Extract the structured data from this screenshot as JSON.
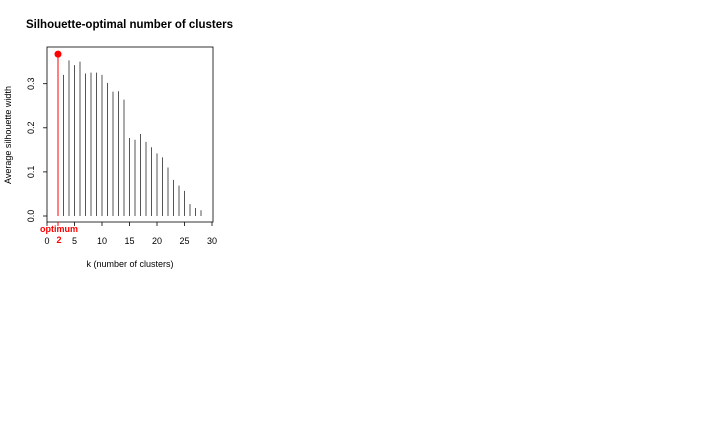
{
  "chart_data": {
    "type": "bar",
    "title": "Silhouette-optimal number of clusters",
    "xlabel": "k (number of clusters)",
    "ylabel": "Average silhouette width",
    "xlim": [
      0,
      30
    ],
    "ylim": [
      0.0,
      0.37
    ],
    "x_ticks": [
      "0",
      "5",
      "10",
      "15",
      "20",
      "25",
      "30"
    ],
    "y_ticks": [
      "0.0",
      "0.1",
      "0.2",
      "0.3"
    ],
    "x": [
      2,
      3,
      4,
      5,
      6,
      7,
      8,
      9,
      10,
      11,
      12,
      13,
      14,
      15,
      16,
      17,
      18,
      19,
      20,
      21,
      22,
      23,
      24,
      25,
      26,
      27,
      28
    ],
    "values": [
      0.367,
      0.32,
      0.353,
      0.342,
      0.35,
      0.323,
      0.325,
      0.325,
      0.32,
      0.302,
      0.282,
      0.283,
      0.264,
      0.177,
      0.173,
      0.186,
      0.168,
      0.156,
      0.142,
      0.133,
      0.11,
      0.082,
      0.069,
      0.057,
      0.027,
      0.018,
      0.013
    ],
    "optimum": {
      "k": 2,
      "label": "optimum",
      "k_label": "2",
      "color": "#ff0000"
    },
    "bar_color": "#555555",
    "grid": false,
    "legend": "none"
  }
}
